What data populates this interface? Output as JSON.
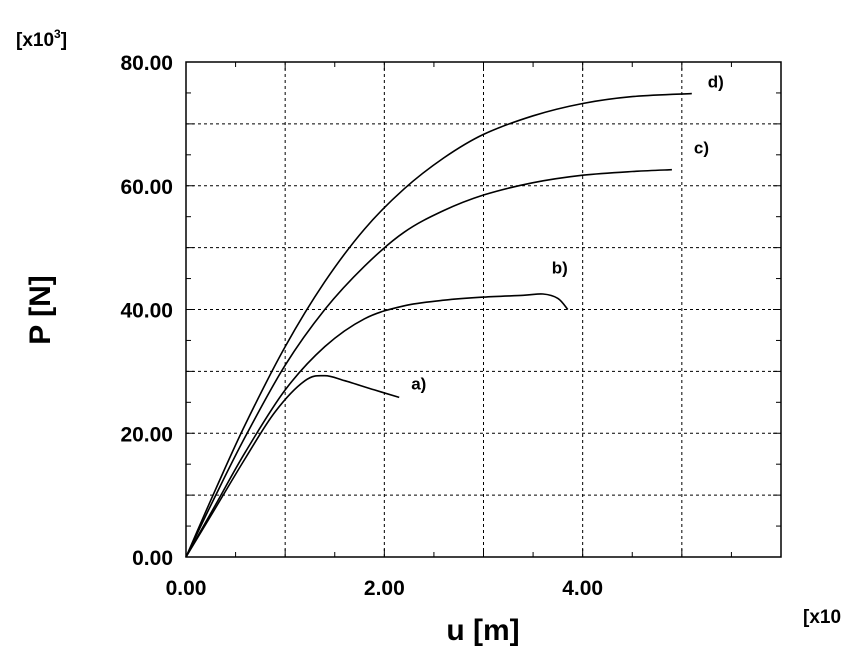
{
  "chart_data": {
    "type": "line",
    "xlabel": "u [m]",
    "ylabel": "P [N]",
    "x_multiplier_label": "[x10",
    "y_multiplier": {
      "base": "[x10",
      "exponent": "3",
      "close": "]"
    },
    "xlim": [
      0,
      6
    ],
    "ylim": [
      0,
      80
    ],
    "x_ticks": [
      "0.00",
      "2.00",
      "4.00"
    ],
    "y_ticks": [
      "0.00",
      "20.00",
      "40.00",
      "60.00",
      "80.00"
    ],
    "grid": true,
    "series": [
      {
        "label": "a)",
        "x": [
          0,
          0.3,
          0.6,
          0.9,
          1.2,
          1.4,
          1.6,
          1.9,
          2.15
        ],
        "y": [
          0,
          8,
          16,
          23.5,
          28.5,
          29.3,
          28.5,
          27.0,
          25.8
        ]
      },
      {
        "label": "b)",
        "x": [
          0,
          0.3,
          0.6,
          1.0,
          1.4,
          1.8,
          2.2,
          2.6,
          3.0,
          3.4,
          3.6,
          3.75,
          3.85
        ],
        "y": [
          0,
          8.5,
          17,
          27,
          34,
          38.5,
          40.6,
          41.5,
          42,
          42.3,
          42.5,
          41.8,
          40
        ]
      },
      {
        "label": "c)",
        "x": [
          0,
          0.3,
          0.6,
          1.0,
          1.4,
          1.8,
          2.2,
          2.6,
          3.0,
          3.5,
          4.0,
          4.5,
          4.9
        ],
        "y": [
          0,
          10,
          19.5,
          31,
          40,
          47,
          52.5,
          56,
          58.5,
          60.5,
          61.7,
          62.3,
          62.6
        ]
      },
      {
        "label": "d)",
        "x": [
          0,
          0.3,
          0.6,
          1.0,
          1.4,
          1.8,
          2.2,
          2.6,
          3.0,
          3.5,
          4.0,
          4.5,
          5.1
        ],
        "y": [
          0,
          11,
          21.5,
          34,
          44.5,
          53,
          59.5,
          64.5,
          68.3,
          71.3,
          73.3,
          74.4,
          74.9
        ]
      }
    ]
  }
}
